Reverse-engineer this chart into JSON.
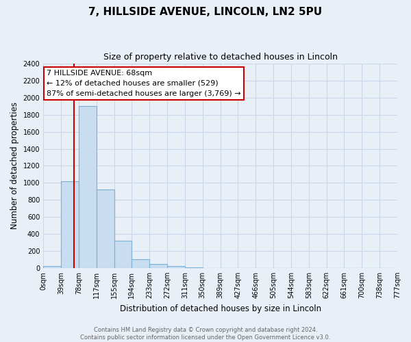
{
  "title": "7, HILLSIDE AVENUE, LINCOLN, LN2 5PU",
  "subtitle": "Size of property relative to detached houses in Lincoln",
  "xlabel": "Distribution of detached houses by size in Lincoln",
  "ylabel": "Number of detached properties",
  "bar_color": "#c8ddf0",
  "bar_edge_color": "#7bafd4",
  "bin_labels": [
    "0sqm",
    "39sqm",
    "78sqm",
    "117sqm",
    "155sqm",
    "194sqm",
    "233sqm",
    "272sqm",
    "311sqm",
    "350sqm",
    "389sqm",
    "427sqm",
    "466sqm",
    "505sqm",
    "544sqm",
    "583sqm",
    "622sqm",
    "661sqm",
    "700sqm",
    "738sqm",
    "777sqm"
  ],
  "bar_values": [
    20,
    1020,
    1900,
    920,
    320,
    105,
    50,
    20,
    5,
    0,
    0,
    0,
    0,
    0,
    0,
    0,
    0,
    0,
    0,
    0
  ],
  "ylim": [
    0,
    2400
  ],
  "yticks": [
    0,
    200,
    400,
    600,
    800,
    1000,
    1200,
    1400,
    1600,
    1800,
    2000,
    2200,
    2400
  ],
  "property_line_color": "#cc0000",
  "annotation_title": "7 HILLSIDE AVENUE: 68sqm",
  "annotation_line1": "← 12% of detached houses are smaller (529)",
  "annotation_line2": "87% of semi-detached houses are larger (3,769) →",
  "annotation_box_color": "#ffffff",
  "annotation_box_edge_color": "#cc0000",
  "footer_line1": "Contains HM Land Registry data © Crown copyright and database right 2024.",
  "footer_line2": "Contains public sector information licensed under the Open Government Licence v3.0.",
  "background_color": "#e8eff7",
  "grid_color": "#c8d8e8",
  "title_fontsize": 11,
  "subtitle_fontsize": 9,
  "axis_label_fontsize": 8.5,
  "tick_fontsize": 7,
  "footer_fontsize": 6,
  "annotation_fontsize": 8
}
